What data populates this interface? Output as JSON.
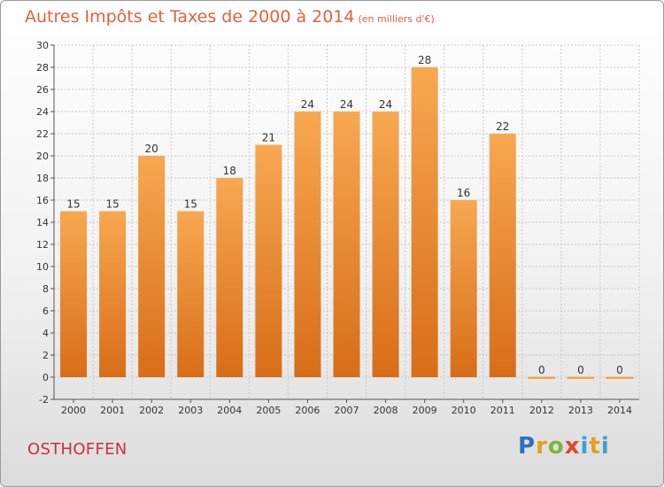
{
  "title": "Autres Impôts et Taxes de 2000 à 2014",
  "subtitle": "(en milliers d'€)",
  "commune": "OSTHOFFEN",
  "logo_text": "Proxiti",
  "colors": {
    "bar_top": "#f7a851",
    "bar_bottom": "#d86d18",
    "title": "#e0623c",
    "commune": "#c8323c",
    "grid": "#c8c8c8"
  },
  "chart_data": {
    "type": "bar",
    "title": "Autres Impôts et Taxes de 2000 à 2014",
    "subtitle": "(en milliers d'€)",
    "xlabel": "",
    "ylabel": "",
    "categories": [
      "2000",
      "2001",
      "2002",
      "2003",
      "2004",
      "2005",
      "2006",
      "2007",
      "2008",
      "2009",
      "2010",
      "2011",
      "2012",
      "2013",
      "2014"
    ],
    "values": [
      15,
      15,
      20,
      15,
      18,
      21,
      24,
      24,
      24,
      28,
      16,
      22,
      0,
      0,
      0
    ],
    "ylim": [
      -2,
      30
    ],
    "yticks": [
      -2,
      0,
      2,
      4,
      6,
      8,
      10,
      12,
      14,
      16,
      18,
      20,
      22,
      24,
      26,
      28,
      30
    ],
    "grid": true,
    "legend": "none"
  }
}
